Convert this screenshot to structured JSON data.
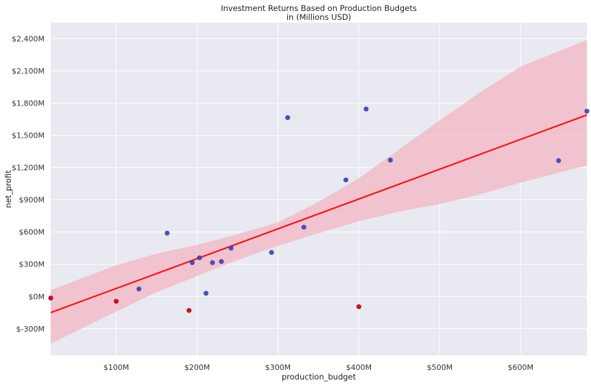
{
  "chart_data": {
    "type": "scatter",
    "title_line1": "Investment Returns Based on Production Budgets",
    "title_line2": "in (Millions USD)",
    "xlabel": "production_budget",
    "ylabel": "net_profit",
    "xlim": [
      19,
      682
    ],
    "ylim": [
      -550,
      2550
    ],
    "x_ticks": [
      {
        "value": 100,
        "label": "$100M"
      },
      {
        "value": 200,
        "label": "$200M"
      },
      {
        "value": 300,
        "label": "$300M"
      },
      {
        "value": 400,
        "label": "$400M"
      },
      {
        "value": 500,
        "label": "$500M"
      },
      {
        "value": 600,
        "label": "$600M"
      }
    ],
    "y_ticks": [
      {
        "value": 2400,
        "label": "$2,400M"
      },
      {
        "value": 2100,
        "label": "$2,100M"
      },
      {
        "value": 1800,
        "label": "$1,800M"
      },
      {
        "value": 1500,
        "label": "$1,500M"
      },
      {
        "value": 1200,
        "label": "$1,200M"
      },
      {
        "value": 900,
        "label": "$900M"
      },
      {
        "value": 600,
        "label": "$600M"
      },
      {
        "value": 300,
        "label": "$300M"
      },
      {
        "value": 0,
        "label": "$0M"
      },
      {
        "value": -300,
        "label": "$-300M"
      }
    ],
    "grid": true,
    "colors": {
      "background": "#e8e9f1",
      "grid": "#ffffff",
      "profit_point": "#3a45b8",
      "loss_point": "#c0001c",
      "regression_line": "#ff1010",
      "confidence_band": "#f4b6c2"
    },
    "points": [
      {
        "x": 19,
        "y": -15
      },
      {
        "x": 100,
        "y": -45
      },
      {
        "x": 128,
        "y": 70
      },
      {
        "x": 163,
        "y": 590
      },
      {
        "x": 190,
        "y": -130
      },
      {
        "x": 194,
        "y": 315
      },
      {
        "x": 203,
        "y": 360
      },
      {
        "x": 211,
        "y": 30
      },
      {
        "x": 219,
        "y": 315
      },
      {
        "x": 230,
        "y": 325
      },
      {
        "x": 242,
        "y": 450
      },
      {
        "x": 292,
        "y": 410
      },
      {
        "x": 312,
        "y": 1665
      },
      {
        "x": 332,
        "y": 645
      },
      {
        "x": 384,
        "y": 1085
      },
      {
        "x": 400,
        "y": -95
      },
      {
        "x": 409,
        "y": 1745
      },
      {
        "x": 439,
        "y": 1270
      },
      {
        "x": 647,
        "y": 1265
      },
      {
        "x": 682,
        "y": 1725
      }
    ],
    "regression": {
      "x": [
        19,
        682
      ],
      "y": [
        -150,
        1690
      ]
    },
    "confidence_band": {
      "x": [
        19,
        100,
        150,
        200,
        250,
        300,
        350,
        400,
        450,
        500,
        550,
        600,
        682
      ],
      "upper": [
        60,
        290,
        400,
        480,
        580,
        690,
        880,
        1100,
        1370,
        1640,
        1900,
        2140,
        2390
      ],
      "lower": [
        -440,
        -140,
        40,
        190,
        340,
        470,
        590,
        700,
        790,
        860,
        950,
        1060,
        1220
      ]
    }
  }
}
